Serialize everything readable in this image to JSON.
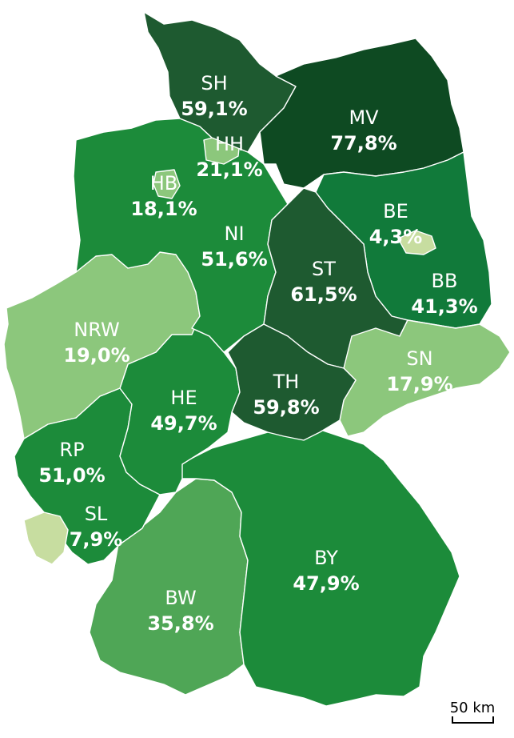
{
  "colors": {
    "level_1": "#c7dda0",
    "level_2": "#8cc77c",
    "level_3": "#4fa656",
    "level_4": "#1c8b3a",
    "level_5": "#1e6b33",
    "level_6": "#1a5a2c",
    "level_7": "#0e4a22",
    "stroke": "#ffffff",
    "label": "#ffffff"
  },
  "states": [
    {
      "code": "SH",
      "value": "59,1%",
      "color": "#1e5a30"
    },
    {
      "code": "HH",
      "value": "21,1%",
      "color": "#8cc77c"
    },
    {
      "code": "MV",
      "value": "77,8%",
      "color": "#0e4a22"
    },
    {
      "code": "HB",
      "value": "18,1%",
      "color": "#8cc77c"
    },
    {
      "code": "NI",
      "value": "51,6%",
      "color": "#1c8b3a"
    },
    {
      "code": "BE",
      "value": "4,3%",
      "color": "#c7dda0"
    },
    {
      "code": "BB",
      "value": "41,3%",
      "color": "#117a3a"
    },
    {
      "code": "ST",
      "value": "61,5%",
      "color": "#1e5a30"
    },
    {
      "code": "NRW",
      "value": "19,0%",
      "color": "#8cc77c"
    },
    {
      "code": "SN",
      "value": "17,9%",
      "color": "#8cc77c"
    },
    {
      "code": "HE",
      "value": "49,7%",
      "color": "#1c8b3a"
    },
    {
      "code": "TH",
      "value": "59,8%",
      "color": "#1e5a30"
    },
    {
      "code": "RP",
      "value": "51,0%",
      "color": "#1c8b3a"
    },
    {
      "code": "SL",
      "value": "7,9%",
      "color": "#c7dda0"
    },
    {
      "code": "BY",
      "value": "47,9%",
      "color": "#1c8b3a"
    },
    {
      "code": "BW",
      "value": "35,8%",
      "color": "#4fa656"
    }
  ],
  "scale_bar": {
    "label": "50 km"
  }
}
